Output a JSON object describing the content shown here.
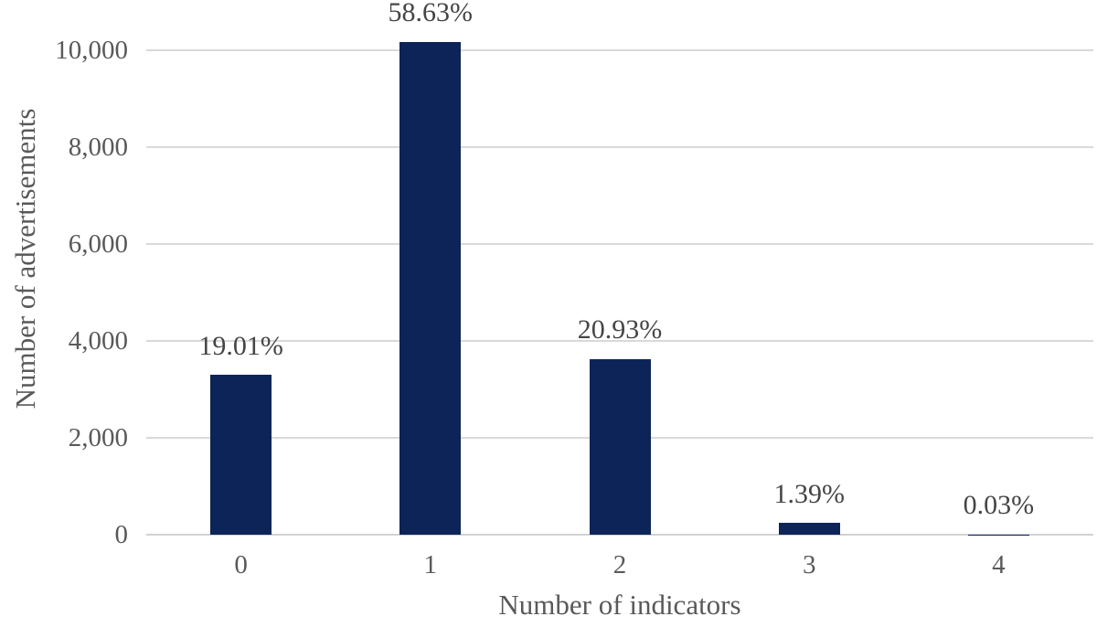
{
  "chart_data": {
    "type": "bar",
    "categories": [
      "0",
      "1",
      "2",
      "3",
      "4"
    ],
    "values": [
      3299,
      10175,
      3632,
      241,
      5
    ],
    "bar_labels": [
      "19.01%",
      "58.63%",
      "20.93%",
      "1.39%",
      "0.03%"
    ],
    "title": "",
    "xlabel": "Number of indicators",
    "ylabel": "Number of advertisements",
    "ylim": [
      0,
      10000
    ],
    "yticks": [
      {
        "value": 0,
        "label": "0"
      },
      {
        "value": 2000,
        "label": "2,000"
      },
      {
        "value": 4000,
        "label": "4,000"
      },
      {
        "value": 6000,
        "label": "6,000"
      },
      {
        "value": 8000,
        "label": "8,000"
      },
      {
        "value": 10000,
        "label": "10,000"
      }
    ],
    "grid": true,
    "legend_position": "none",
    "colors": {
      "bar": "#0d2458",
      "gridline": "#d9d9d9",
      "axis_line": "#d2d2d2",
      "axis_text": "#595959",
      "bar_label_text": "#454545"
    }
  }
}
